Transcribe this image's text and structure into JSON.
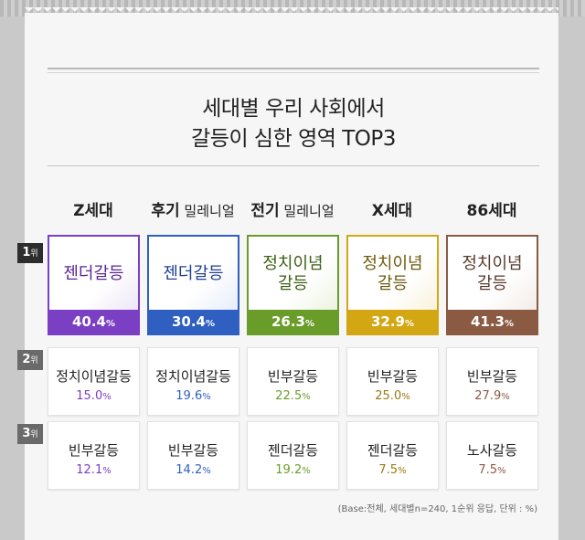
{
  "title_line1": "세대별 우리 사회에서",
  "title_line2": "갈등이 심한 영역 TOP3",
  "generations": [
    {
      "bold": "Z세대",
      "sub": ""
    },
    {
      "bold": "후기",
      "sub": " 밀레니얼"
    },
    {
      "bold": "전기",
      "sub": " 밀레니얼"
    },
    {
      "bold": "X세대",
      "sub": ""
    },
    {
      "bold": "86세대",
      "sub": ""
    }
  ],
  "ranks": [
    {
      "num": "1",
      "suffix": "위"
    },
    {
      "num": "2",
      "suffix": "위"
    },
    {
      "num": "3",
      "suffix": "위"
    }
  ],
  "percent_sign": "%",
  "colors": {
    "z": "#7b3fc4",
    "late_millennial": "#2f5fc0",
    "early_millennial": "#6a9c2a",
    "x": "#d3a614",
    "gen86": "#8a5a43"
  },
  "chart_data": {
    "type": "table",
    "title": "세대별 우리 사회에서 갈등이 심한 영역 TOP3",
    "columns": [
      "Z세대",
      "후기 밀레니얼",
      "전기 밀레니얼",
      "X세대",
      "86세대"
    ],
    "rows": [
      "1위",
      "2위",
      "3위"
    ],
    "cells": [
      [
        {
          "label": "젠더갈등",
          "value": 40.4
        },
        {
          "label": "젠더갈등",
          "value": 30.4
        },
        {
          "label": "정치이념 갈등",
          "value": 26.3
        },
        {
          "label": "정치이념 갈등",
          "value": 32.9
        },
        {
          "label": "정치이념 갈등",
          "value": 41.3
        }
      ],
      [
        {
          "label": "정치이념갈등",
          "value": 15.0
        },
        {
          "label": "정치이념갈등",
          "value": 19.6
        },
        {
          "label": "빈부갈등",
          "value": 22.5
        },
        {
          "label": "빈부갈등",
          "value": 25.0
        },
        {
          "label": "빈부갈등",
          "value": 27.9
        }
      ],
      [
        {
          "label": "빈부갈등",
          "value": 12.1
        },
        {
          "label": "빈부갈등",
          "value": 14.2
        },
        {
          "label": "젠더갈등",
          "value": 19.2
        },
        {
          "label": "젠더갈등",
          "value": 7.5
        },
        {
          "label": "노사갈등",
          "value": 7.5
        }
      ]
    ],
    "unit": "%"
  },
  "note": "(Base:전체, 세대별n=240, 1순위 응답, 단위 : %)"
}
